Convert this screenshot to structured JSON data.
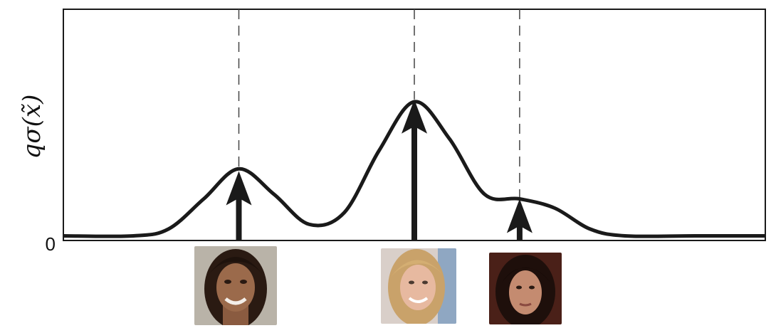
{
  "chart_data": {
    "type": "line",
    "title": "",
    "ylabel": "qσ(x̃)",
    "xlabel": "",
    "y_tick_labels": [
      "0"
    ],
    "xlim": [
      0,
      10
    ],
    "ylim": [
      0,
      1
    ],
    "grid": false,
    "components": [
      {
        "x": 2.5,
        "weight": 0.3,
        "image": "face-photo-1"
      },
      {
        "x": 5.0,
        "weight": 0.61,
        "image": "face-photo-2"
      },
      {
        "x": 6.5,
        "weight": 0.18,
        "image": "face-photo-3"
      }
    ],
    "curve": {
      "x": [
        0,
        1,
        1.5,
        2,
        2.5,
        3,
        3.5,
        4,
        4.5,
        5,
        5.5,
        6,
        6.5,
        7,
        7.5,
        8,
        9,
        10
      ],
      "y": [
        0.02,
        0.02,
        0.05,
        0.18,
        0.31,
        0.2,
        0.07,
        0.12,
        0.39,
        0.6,
        0.44,
        0.2,
        0.18,
        0.14,
        0.05,
        0.02,
        0.02,
        0.02
      ]
    }
  },
  "colors": {
    "line": "#1a1a1a",
    "axes": "#1a1a1a",
    "dashes": "#444444"
  }
}
